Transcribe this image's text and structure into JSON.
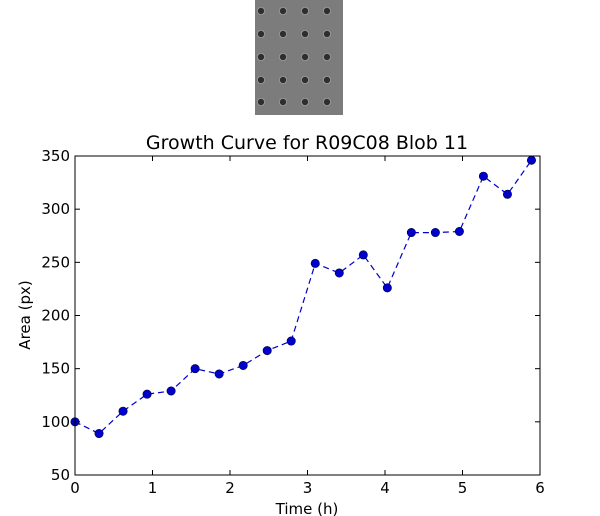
{
  "thumbnail": {
    "rows": 5,
    "cols": 4,
    "background_color": "#7c7c7c",
    "dot_color": "#2e2e2e"
  },
  "chart_data": {
    "type": "line",
    "title": "Growth Curve for R09C08 Blob 11",
    "xlabel": "Time (h)",
    "ylabel": "Area (px)",
    "xlim": [
      0,
      6
    ],
    "ylim": [
      50,
      350
    ],
    "xticks": [
      "0",
      "1",
      "2",
      "3",
      "4",
      "5",
      "6"
    ],
    "yticks": [
      "50",
      "100",
      "150",
      "200",
      "250",
      "300",
      "350"
    ],
    "grid": false,
    "line_style": "dashed",
    "marker": "circle",
    "color": "#0000cc",
    "series": [
      {
        "x": [
          0,
          0.31,
          0.62,
          0.93,
          1.24,
          1.55,
          1.86,
          2.17,
          2.48,
          2.79,
          3.1,
          3.41,
          3.72,
          4.03,
          4.34,
          4.65,
          4.96,
          5.27,
          5.58,
          5.89
        ],
        "y": [
          100,
          89,
          110,
          126,
          129,
          150,
          145,
          153,
          167,
          176,
          249,
          240,
          257,
          226,
          278,
          278,
          279,
          331,
          314,
          346
        ]
      }
    ]
  }
}
